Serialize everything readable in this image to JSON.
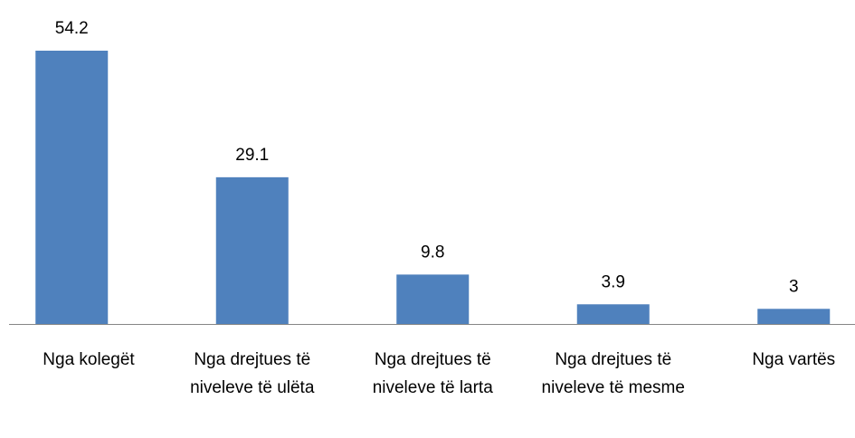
{
  "chart_data": {
    "type": "bar",
    "categories": [
      "Nga kolegët",
      "Nga drejtues të niveleve të ulëta",
      "Nga drejtues të niveleve të larta",
      "Nga drejtues të niveleve të mesme",
      "Nga vartës"
    ],
    "values": [
      54.2,
      29.1,
      9.8,
      3.9,
      3
    ],
    "color": "#4f81bd"
  }
}
